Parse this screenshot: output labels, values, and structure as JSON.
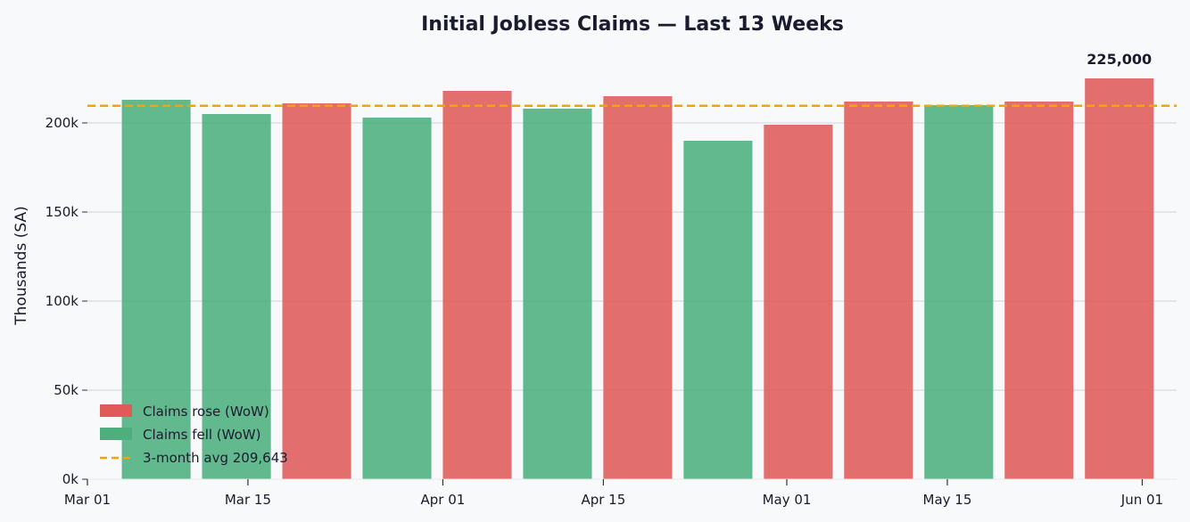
{
  "chart_data": {
    "type": "bar",
    "title": "Initial Jobless Claims — Last 13 Weeks",
    "ylabel": "Thousands (SA)",
    "xlabel": "",
    "ylim": [
      0,
      235000
    ],
    "xlim": [
      "2025-03-01",
      "2025-06-04"
    ],
    "y_ticks": [
      0,
      50000,
      100000,
      150000,
      200000
    ],
    "y_tick_labels": [
      "0k",
      "50k",
      "100k",
      "150k",
      "200k"
    ],
    "x_ticks": [
      "2025-03-01",
      "2025-03-15",
      "2025-04-01",
      "2025-04-15",
      "2025-05-01",
      "2025-05-15",
      "2025-06-01"
    ],
    "x_tick_labels": [
      "Mar 01",
      "Mar 15",
      "Apr 01",
      "Apr 15",
      "May 01",
      "May 15",
      "Jun 01"
    ],
    "grid": "horizontal",
    "legend_position": "lower-left",
    "colors": {
      "rose": "#e05a5a",
      "fell": "#4caf7d",
      "avg": "#f0a30a"
    },
    "series": [
      {
        "name": "Initial Jobless Claims",
        "dates": [
          "2025-03-07",
          "2025-03-14",
          "2025-03-21",
          "2025-03-28",
          "2025-04-04",
          "2025-04-11",
          "2025-04-18",
          "2025-04-25",
          "2025-05-02",
          "2025-05-09",
          "2025-05-16",
          "2025-05-23",
          "2025-05-30"
        ],
        "values": [
          213000,
          205000,
          211000,
          203000,
          218000,
          208000,
          215000,
          190000,
          199000,
          212000,
          210000,
          212000,
          225000
        ],
        "direction": [
          "fell",
          "fell",
          "rose",
          "fell",
          "rose",
          "fell",
          "rose",
          "fell",
          "rose",
          "rose",
          "fell",
          "rose",
          "rose"
        ]
      }
    ],
    "reference_line": {
      "value": 209643,
      "label": "3-month avg  209,643"
    },
    "legend": [
      {
        "key": "rose",
        "label": "Claims rose (WoW)"
      },
      {
        "key": "fell",
        "label": "Claims fell (WoW)"
      },
      {
        "key": "avg",
        "label": "3-month avg  209,643"
      }
    ],
    "annotations": [
      {
        "date": "2025-05-30",
        "value": 225000,
        "text": "225,000"
      }
    ]
  }
}
